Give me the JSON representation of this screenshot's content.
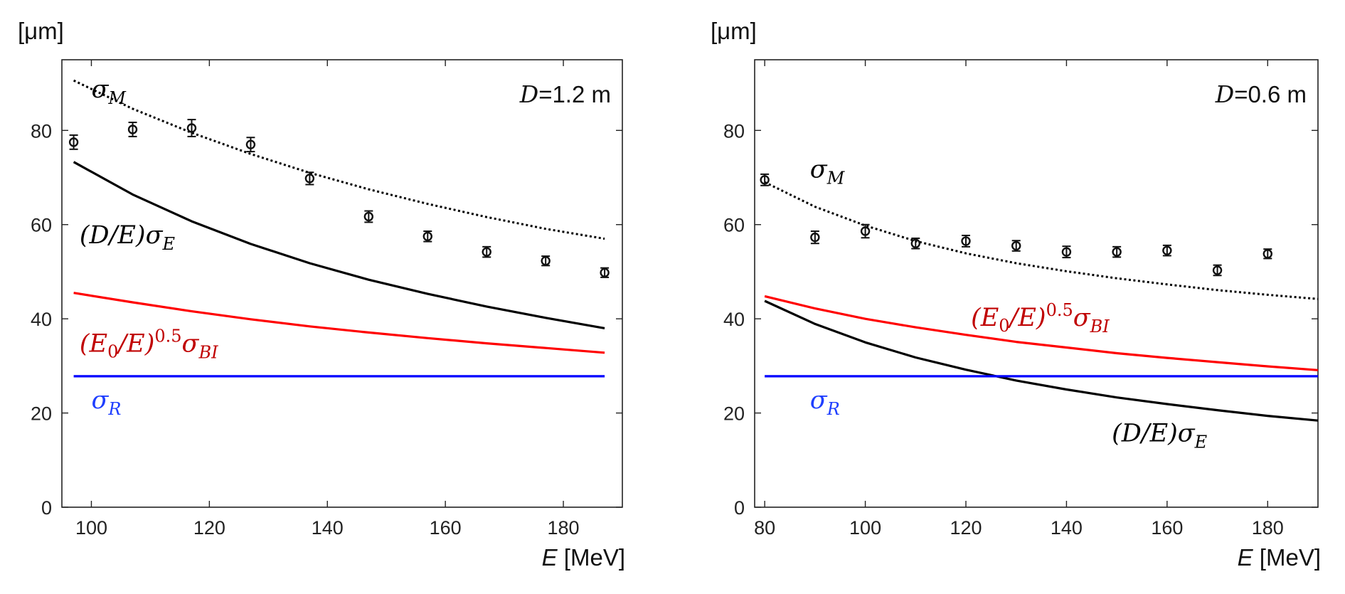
{
  "chart_data": [
    {
      "type": "line",
      "annotation": {
        "label": "D",
        "value": "=1.2 m"
      },
      "ylabel": "[μm]",
      "xlabel": {
        "symbol": "E",
        "unit": " [MeV]"
      },
      "xlim": [
        95,
        190
      ],
      "ylim": [
        0,
        95
      ],
      "xticks": [
        100,
        120,
        140,
        160,
        180
      ],
      "yticks": [
        0,
        20,
        40,
        60,
        80
      ],
      "series": [
        {
          "name": "sigma_M",
          "style": "dotted",
          "color": "#000000",
          "x": [
            97,
            107,
            117,
            127,
            137,
            147,
            157,
            167,
            177,
            187
          ],
          "y": [
            90.6,
            84.6,
            79.5,
            75.0,
            71.0,
            67.5,
            64.4,
            61.6,
            59.1,
            57.0
          ]
        },
        {
          "name": "D/E sigma_E",
          "style": "solid",
          "color": "#000000",
          "x": [
            97,
            107,
            117,
            127,
            137,
            147,
            157,
            167,
            177,
            187
          ],
          "y": [
            73.3,
            66.4,
            60.7,
            55.9,
            51.8,
            48.3,
            45.3,
            42.6,
            40.2,
            38.0
          ]
        },
        {
          "name": "E0/E sigma_BI",
          "style": "solid",
          "color": "#ff0000",
          "x": [
            97,
            107,
            117,
            127,
            137,
            147,
            157,
            167,
            177,
            187
          ],
          "y": [
            45.5,
            43.5,
            41.6,
            39.9,
            38.4,
            37.1,
            35.9,
            34.8,
            33.8,
            32.8
          ]
        },
        {
          "name": "sigma_R",
          "style": "solid",
          "color": "#0000ff",
          "x": [
            97,
            187
          ],
          "y": [
            27.8,
            27.8
          ]
        }
      ],
      "measurements": {
        "x": [
          97,
          107,
          117,
          127,
          137,
          147,
          157,
          167,
          177,
          187
        ],
        "y": [
          77.5,
          80.2,
          80.5,
          77.0,
          69.8,
          61.7,
          57.5,
          54.2,
          52.3,
          49.8
        ],
        "err": [
          1.5,
          1.5,
          1.8,
          1.5,
          1.3,
          1.2,
          1.1,
          1.1,
          1.0,
          1.0
        ]
      },
      "labels": [
        {
          "series": "sigma_M",
          "text": "σ",
          "sub": "M",
          "color": "#000000",
          "at": [
            100,
            87
          ]
        },
        {
          "series": "D/E sigma_E",
          "text": "(D/E)σ",
          "sub": "E",
          "color": "#000000",
          "at": [
            98,
            56
          ]
        },
        {
          "series": "E0/E sigma_BI",
          "text": "(E",
          "sub0": "0",
          "mid": "/E)",
          "sup": "0.5",
          "tail": "σ",
          "sub": "BI",
          "color": "#c00000",
          "at": [
            98,
            33
          ]
        },
        {
          "series": "sigma_R",
          "text": "σ",
          "sub": "R",
          "color": "#1f3fff",
          "at": [
            100,
            21
          ]
        }
      ]
    },
    {
      "type": "line",
      "annotation": {
        "label": "D",
        "value": "=0.6 m"
      },
      "ylabel": "[μm]",
      "xlabel": {
        "symbol": "E",
        "unit": " [MeV]"
      },
      "xlim": [
        78,
        190
      ],
      "ylim": [
        0,
        95
      ],
      "xticks": [
        80,
        100,
        120,
        140,
        160,
        180
      ],
      "yticks": [
        0,
        20,
        40,
        60,
        80
      ],
      "series": [
        {
          "name": "sigma_M",
          "style": "dotted",
          "color": "#000000",
          "x": [
            80,
            90,
            100,
            110,
            120,
            130,
            140,
            150,
            160,
            170,
            180,
            190
          ],
          "y": [
            69.0,
            63.8,
            59.8,
            56.5,
            53.9,
            51.8,
            50.1,
            48.6,
            47.3,
            46.1,
            45.1,
            44.2
          ]
        },
        {
          "name": "D/E sigma_E",
          "style": "solid",
          "color": "#000000",
          "x": [
            80,
            90,
            100,
            110,
            120,
            130,
            140,
            150,
            160,
            170,
            180,
            190
          ],
          "y": [
            43.8,
            38.9,
            35.0,
            31.8,
            29.2,
            26.9,
            25.0,
            23.3,
            21.9,
            20.6,
            19.4,
            18.4
          ]
        },
        {
          "name": "E0/E sigma_BI",
          "style": "solid",
          "color": "#ff0000",
          "x": [
            80,
            90,
            100,
            110,
            120,
            130,
            140,
            150,
            160,
            170,
            180,
            190
          ],
          "y": [
            44.8,
            42.2,
            40.0,
            38.2,
            36.6,
            35.1,
            33.9,
            32.7,
            31.7,
            30.8,
            29.9,
            29.1
          ]
        },
        {
          "name": "sigma_R",
          "style": "solid",
          "color": "#0000ff",
          "x": [
            80,
            190
          ],
          "y": [
            27.8,
            27.8
          ]
        }
      ],
      "measurements": {
        "x": [
          80,
          90,
          100,
          110,
          120,
          130,
          140,
          150,
          160,
          170,
          180
        ],
        "y": [
          69.5,
          57.3,
          58.6,
          56.0,
          56.5,
          55.5,
          54.2,
          54.2,
          54.5,
          50.3,
          53.8
        ],
        "err": [
          1.2,
          1.3,
          1.4,
          1.1,
          1.2,
          1.1,
          1.2,
          1.1,
          1.1,
          1.1,
          1.0
        ]
      },
      "labels": [
        {
          "series": "sigma_M",
          "text": "σ",
          "sub": "M",
          "color": "#000000",
          "at": [
            89,
            70
          ]
        },
        {
          "series": "D/E sigma_E",
          "text": "(D/E)σ",
          "sub": "E",
          "color": "#000000",
          "at": [
            149,
            14
          ]
        },
        {
          "series": "E0/E sigma_BI",
          "text": "(E",
          "sub0": "0",
          "mid": "/E)",
          "sup": "0.5",
          "tail": "σ",
          "sub": "BI",
          "color": "#c00000",
          "at": [
            121,
            38.5
          ]
        },
        {
          "series": "sigma_R",
          "text": "σ",
          "sub": "R",
          "color": "#1f3fff",
          "at": [
            89,
            21
          ]
        }
      ]
    }
  ]
}
